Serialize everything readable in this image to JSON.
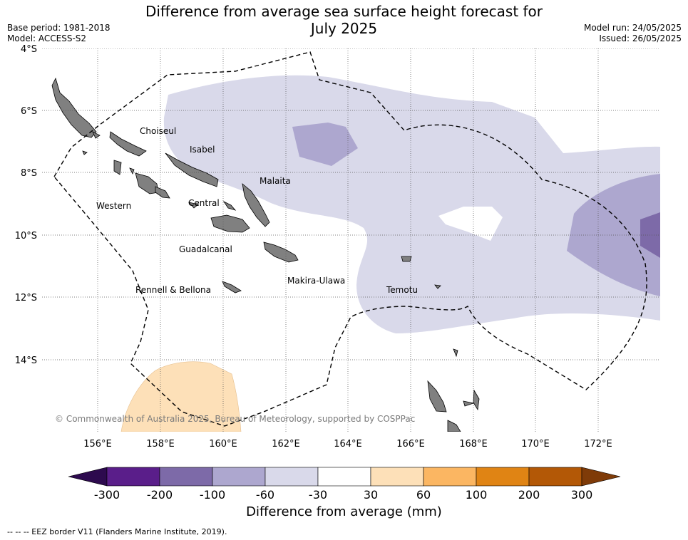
{
  "title": {
    "line1": "Difference from average sea surface height forecast for",
    "line2": "July 2025"
  },
  "meta": {
    "base_period": "Base period: 1981-2018",
    "model": "Model: ACCESS-S2",
    "model_run": "Model run: 24/05/2025",
    "issued": "Issued: 26/05/2025"
  },
  "map": {
    "lat_labels": [
      "4°S",
      "6°S",
      "8°S",
      "10°S",
      "12°S",
      "14°S"
    ],
    "lon_labels": [
      "156°E",
      "158°E",
      "160°E",
      "162°E",
      "164°E",
      "166°E",
      "168°E",
      "170°E",
      "172°E"
    ],
    "provinces": [
      "Choiseul",
      "Isabel",
      "Malaita",
      "Western",
      "Central",
      "Guadalcanal",
      "Makira-Ulawa",
      "Rennell & Bellona",
      "Temotu"
    ],
    "copyright": "© Commonwealth of Australia 2025, Bureau of Meteorology, supported by COSPPac",
    "land_color": "#808080",
    "eez_line": "dashed-black"
  },
  "colorbar": {
    "ticks": [
      "-300",
      "-200",
      "-100",
      "-60",
      "-30",
      "30",
      "60",
      "100",
      "200",
      "300"
    ],
    "colors": [
      "#2d0a4e",
      "#5a1e8a",
      "#7d6aa8",
      "#ada7cf",
      "#d9d9ea",
      "#ffffff",
      "#fde0b8",
      "#fbb662",
      "#e08414",
      "#b35806",
      "#7f3b08"
    ],
    "label": "Difference from average (mm)"
  },
  "footer": "--  --  -- EEZ border V11 (Flanders Marine Institute, 2019)."
}
